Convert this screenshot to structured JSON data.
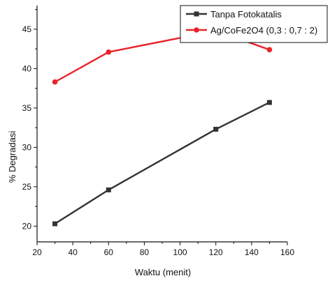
{
  "chart_data": {
    "type": "line",
    "title": "",
    "xlabel": "Waktu (menit)",
    "ylabel": "% Degradasi",
    "xlim": [
      20,
      160
    ],
    "ylim": [
      18,
      48
    ],
    "x_ticks": [
      20,
      40,
      60,
      80,
      100,
      120,
      140,
      160
    ],
    "y_ticks": [
      20,
      25,
      30,
      35,
      40,
      45
    ],
    "grid": false,
    "legend_position": "top-right",
    "series": [
      {
        "name": "Tanpa Fotokatalis",
        "color": "#333333",
        "marker": "square",
        "x": [
          30,
          60,
          120,
          150
        ],
        "y": [
          20.3,
          24.6,
          32.3,
          35.7
        ]
      },
      {
        "name": "Ag/CoFe2O4 (0,3 : 0,7 : 2)",
        "color": "#e8242a",
        "marker": "circle",
        "x": [
          30,
          60,
          120,
          150
        ],
        "y": [
          38.3,
          42.1,
          44.8,
          42.4
        ]
      }
    ]
  }
}
